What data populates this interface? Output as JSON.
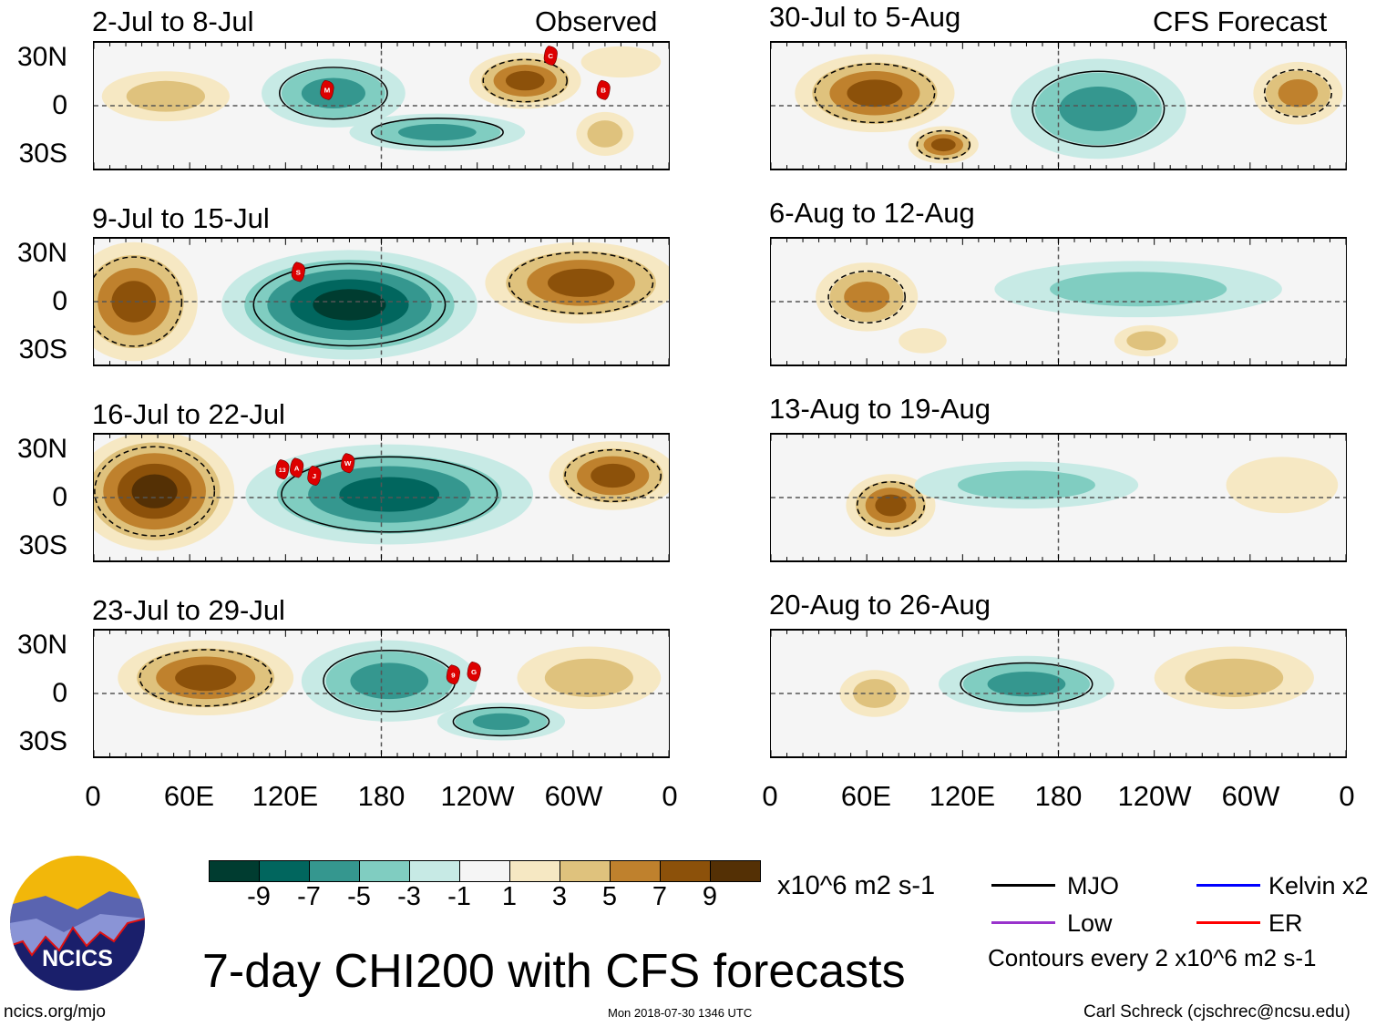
{
  "header": {
    "observed_label": "Observed",
    "forecast_label": "CFS Forecast"
  },
  "panels": [
    {
      "title": "2-Jul to 8-Jul",
      "features": [
        {
          "lon": 45,
          "lat": 6,
          "rlon": 40,
          "rlat": 16,
          "peak": 2
        },
        {
          "lon": 150,
          "lat": 8,
          "rlon": 45,
          "rlat": 22,
          "peak": -3
        },
        {
          "lon": 215,
          "lat": -17,
          "rlon": 55,
          "rlat": 12,
          "peak": -3
        },
        {
          "lon": 270,
          "lat": 16,
          "rlon": 35,
          "rlat": 18,
          "peak": 4
        },
        {
          "lon": 320,
          "lat": -18,
          "rlon": 18,
          "rlat": 14,
          "peak": 2
        },
        {
          "lon": 330,
          "lat": 28,
          "rlon": 25,
          "rlat": 10,
          "peak": 1
        }
      ],
      "storms": [
        {
          "label": "M",
          "lon": 146,
          "lat": 10
        },
        {
          "label": "C",
          "lon": 286,
          "lat": 32
        },
        {
          "label": "B",
          "lon": 319,
          "lat": 10
        }
      ]
    },
    {
      "title": "9-Jul to 15-Jul",
      "features": [
        {
          "lon": 25,
          "lat": 0,
          "rlon": 40,
          "rlat": 38,
          "peak": 4
        },
        {
          "lon": 160,
          "lat": -2,
          "rlon": 80,
          "rlat": 35,
          "peak": -5
        },
        {
          "lon": 305,
          "lat": 12,
          "rlon": 60,
          "rlat": 26,
          "peak": 4
        }
      ],
      "storms": [
        {
          "label": "S",
          "lon": 128,
          "lat": 19
        }
      ]
    },
    {
      "title": "16-Jul to 22-Jul",
      "features": [
        {
          "lon": 38,
          "lat": 4,
          "rlon": 50,
          "rlat": 38,
          "peak": 5
        },
        {
          "lon": 185,
          "lat": 2,
          "rlon": 90,
          "rlat": 32,
          "peak": -4
        },
        {
          "lon": 325,
          "lat": 14,
          "rlon": 40,
          "rlat": 22,
          "peak": 4
        }
      ],
      "storms": [
        {
          "label": "13",
          "lon": 118,
          "lat": 18
        },
        {
          "label": "A",
          "lon": 127,
          "lat": 19
        },
        {
          "label": "J",
          "lon": 138,
          "lat": 14
        },
        {
          "label": "W",
          "lon": 159,
          "lat": 22
        }
      ]
    },
    {
      "title": "23-Jul to 29-Jul",
      "features": [
        {
          "lon": 70,
          "lat": 10,
          "rlon": 55,
          "rlat": 24,
          "peak": 4
        },
        {
          "lon": 185,
          "lat": 8,
          "rlon": 55,
          "rlat": 26,
          "peak": -3
        },
        {
          "lon": 255,
          "lat": -18,
          "rlon": 40,
          "rlat": 12,
          "peak": -3
        },
        {
          "lon": 310,
          "lat": 10,
          "rlon": 45,
          "rlat": 20,
          "peak": 2
        }
      ],
      "storms": [
        {
          "label": "9",
          "lon": 225,
          "lat": 12
        },
        {
          "label": "G",
          "lon": 238,
          "lat": 14
        }
      ]
    },
    {
      "title": "30-Jul to 5-Aug",
      "features": [
        {
          "lon": 65,
          "lat": 8,
          "rlon": 50,
          "rlat": 25,
          "peak": 4
        },
        {
          "lon": 108,
          "lat": -25,
          "rlon": 22,
          "rlat": 12,
          "peak": 4
        },
        {
          "lon": 205,
          "lat": -2,
          "rlon": 55,
          "rlat": 32,
          "peak": -3
        },
        {
          "lon": 330,
          "lat": 8,
          "rlon": 28,
          "rlat": 20,
          "peak": 3
        }
      ],
      "storms": []
    },
    {
      "title": "6-Aug to 12-Aug",
      "features": [
        {
          "lon": 60,
          "lat": 3,
          "rlon": 32,
          "rlat": 22,
          "peak": 3
        },
        {
          "lon": 230,
          "lat": 8,
          "rlon": 90,
          "rlat": 18,
          "peak": -2
        },
        {
          "lon": 235,
          "lat": -25,
          "rlon": 20,
          "rlat": 10,
          "peak": 2
        },
        {
          "lon": 95,
          "lat": -25,
          "rlon": 15,
          "rlat": 8,
          "peak": 1
        }
      ],
      "storms": []
    },
    {
      "title": "13-Aug to 19-Aug",
      "features": [
        {
          "lon": 75,
          "lat": -5,
          "rlon": 28,
          "rlat": 20,
          "peak": 4
        },
        {
          "lon": 160,
          "lat": 8,
          "rlon": 70,
          "rlat": 15,
          "peak": -2
        },
        {
          "lon": 320,
          "lat": 8,
          "rlon": 35,
          "rlat": 18,
          "peak": 1
        }
      ],
      "storms": []
    },
    {
      "title": "20-Aug to 26-Aug",
      "features": [
        {
          "lon": 65,
          "lat": 0,
          "rlon": 22,
          "rlat": 15,
          "peak": 2
        },
        {
          "lon": 160,
          "lat": 6,
          "rlon": 55,
          "rlat": 18,
          "peak": -3
        },
        {
          "lon": 290,
          "lat": 10,
          "rlon": 50,
          "rlat": 20,
          "peak": 2
        }
      ],
      "storms": []
    }
  ],
  "axes": {
    "y_labels": [
      "30N",
      "0",
      "30S"
    ],
    "x_labels": [
      "0",
      "60E",
      "120E",
      "180",
      "120W",
      "60W",
      "0"
    ]
  },
  "colorbar": {
    "colors": [
      "#003c30",
      "#01665e",
      "#35978f",
      "#80cdc1",
      "#c7eae5",
      "#f5f5f5",
      "#f6e8c3",
      "#dfc27d",
      "#bf812d",
      "#8c510a",
      "#543005"
    ],
    "labels": [
      "-9",
      "-7",
      "-5",
      "-3",
      "-1",
      "1",
      "3",
      "5",
      "7",
      "9"
    ],
    "units": "x10^6 m2 s-1"
  },
  "legend": {
    "items": [
      {
        "label": "MJO",
        "color": "#000000"
      },
      {
        "label": "Kelvin x2",
        "color": "#0000ff"
      },
      {
        "label": "Low",
        "color": "#9933cc"
      },
      {
        "label": "ER",
        "color": "#ff0000"
      }
    ],
    "contours_note": "Contours every 2 x10^6 m2 s-1"
  },
  "title": "7-day CHI200 with CFS forecasts",
  "footer": {
    "url": "ncics.org/mjo",
    "timestamp": "Mon 2018-07-30 1346 UTC",
    "author": "Carl Schreck (cjschrec@ncsu.edu)"
  },
  "logo": {
    "text": "NCICS"
  }
}
